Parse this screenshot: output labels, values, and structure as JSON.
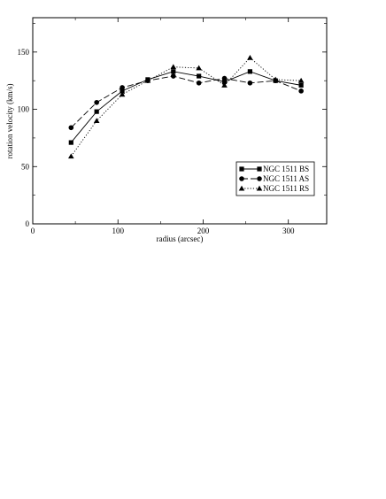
{
  "chart_data": {
    "type": "line",
    "xlabel": "radius (arcsec)",
    "ylabel": "rotation velocity (km/s)",
    "xlim": [
      0,
      345
    ],
    "ylim": [
      0,
      180
    ],
    "xticks": [
      0,
      100,
      200,
      300
    ],
    "yticks": [
      0,
      50,
      100,
      150
    ],
    "grid": false,
    "legend_position": "center-right",
    "series": [
      {
        "name": "NGC 1511 BS",
        "marker": "square",
        "line": "solid",
        "x": [
          45,
          75,
          105,
          135,
          165,
          195,
          225,
          255,
          285,
          315
        ],
        "y": [
          71,
          98,
          116,
          126,
          133,
          129,
          124,
          133,
          125,
          121
        ]
      },
      {
        "name": "NGC 1511 AS",
        "marker": "circle",
        "line": "dashed",
        "x": [
          45,
          75,
          105,
          135,
          165,
          195,
          225,
          255,
          285,
          315
        ],
        "y": [
          84,
          106,
          119,
          125,
          129,
          123,
          127,
          123,
          125,
          116
        ]
      },
      {
        "name": "NGC 1511 RS",
        "marker": "triangle",
        "line": "dotted",
        "x": [
          45,
          75,
          105,
          135,
          165,
          195,
          225,
          255,
          285,
          315
        ],
        "y": [
          59,
          90,
          113,
          125,
          137,
          136,
          121,
          145,
          126,
          125
        ]
      }
    ]
  }
}
